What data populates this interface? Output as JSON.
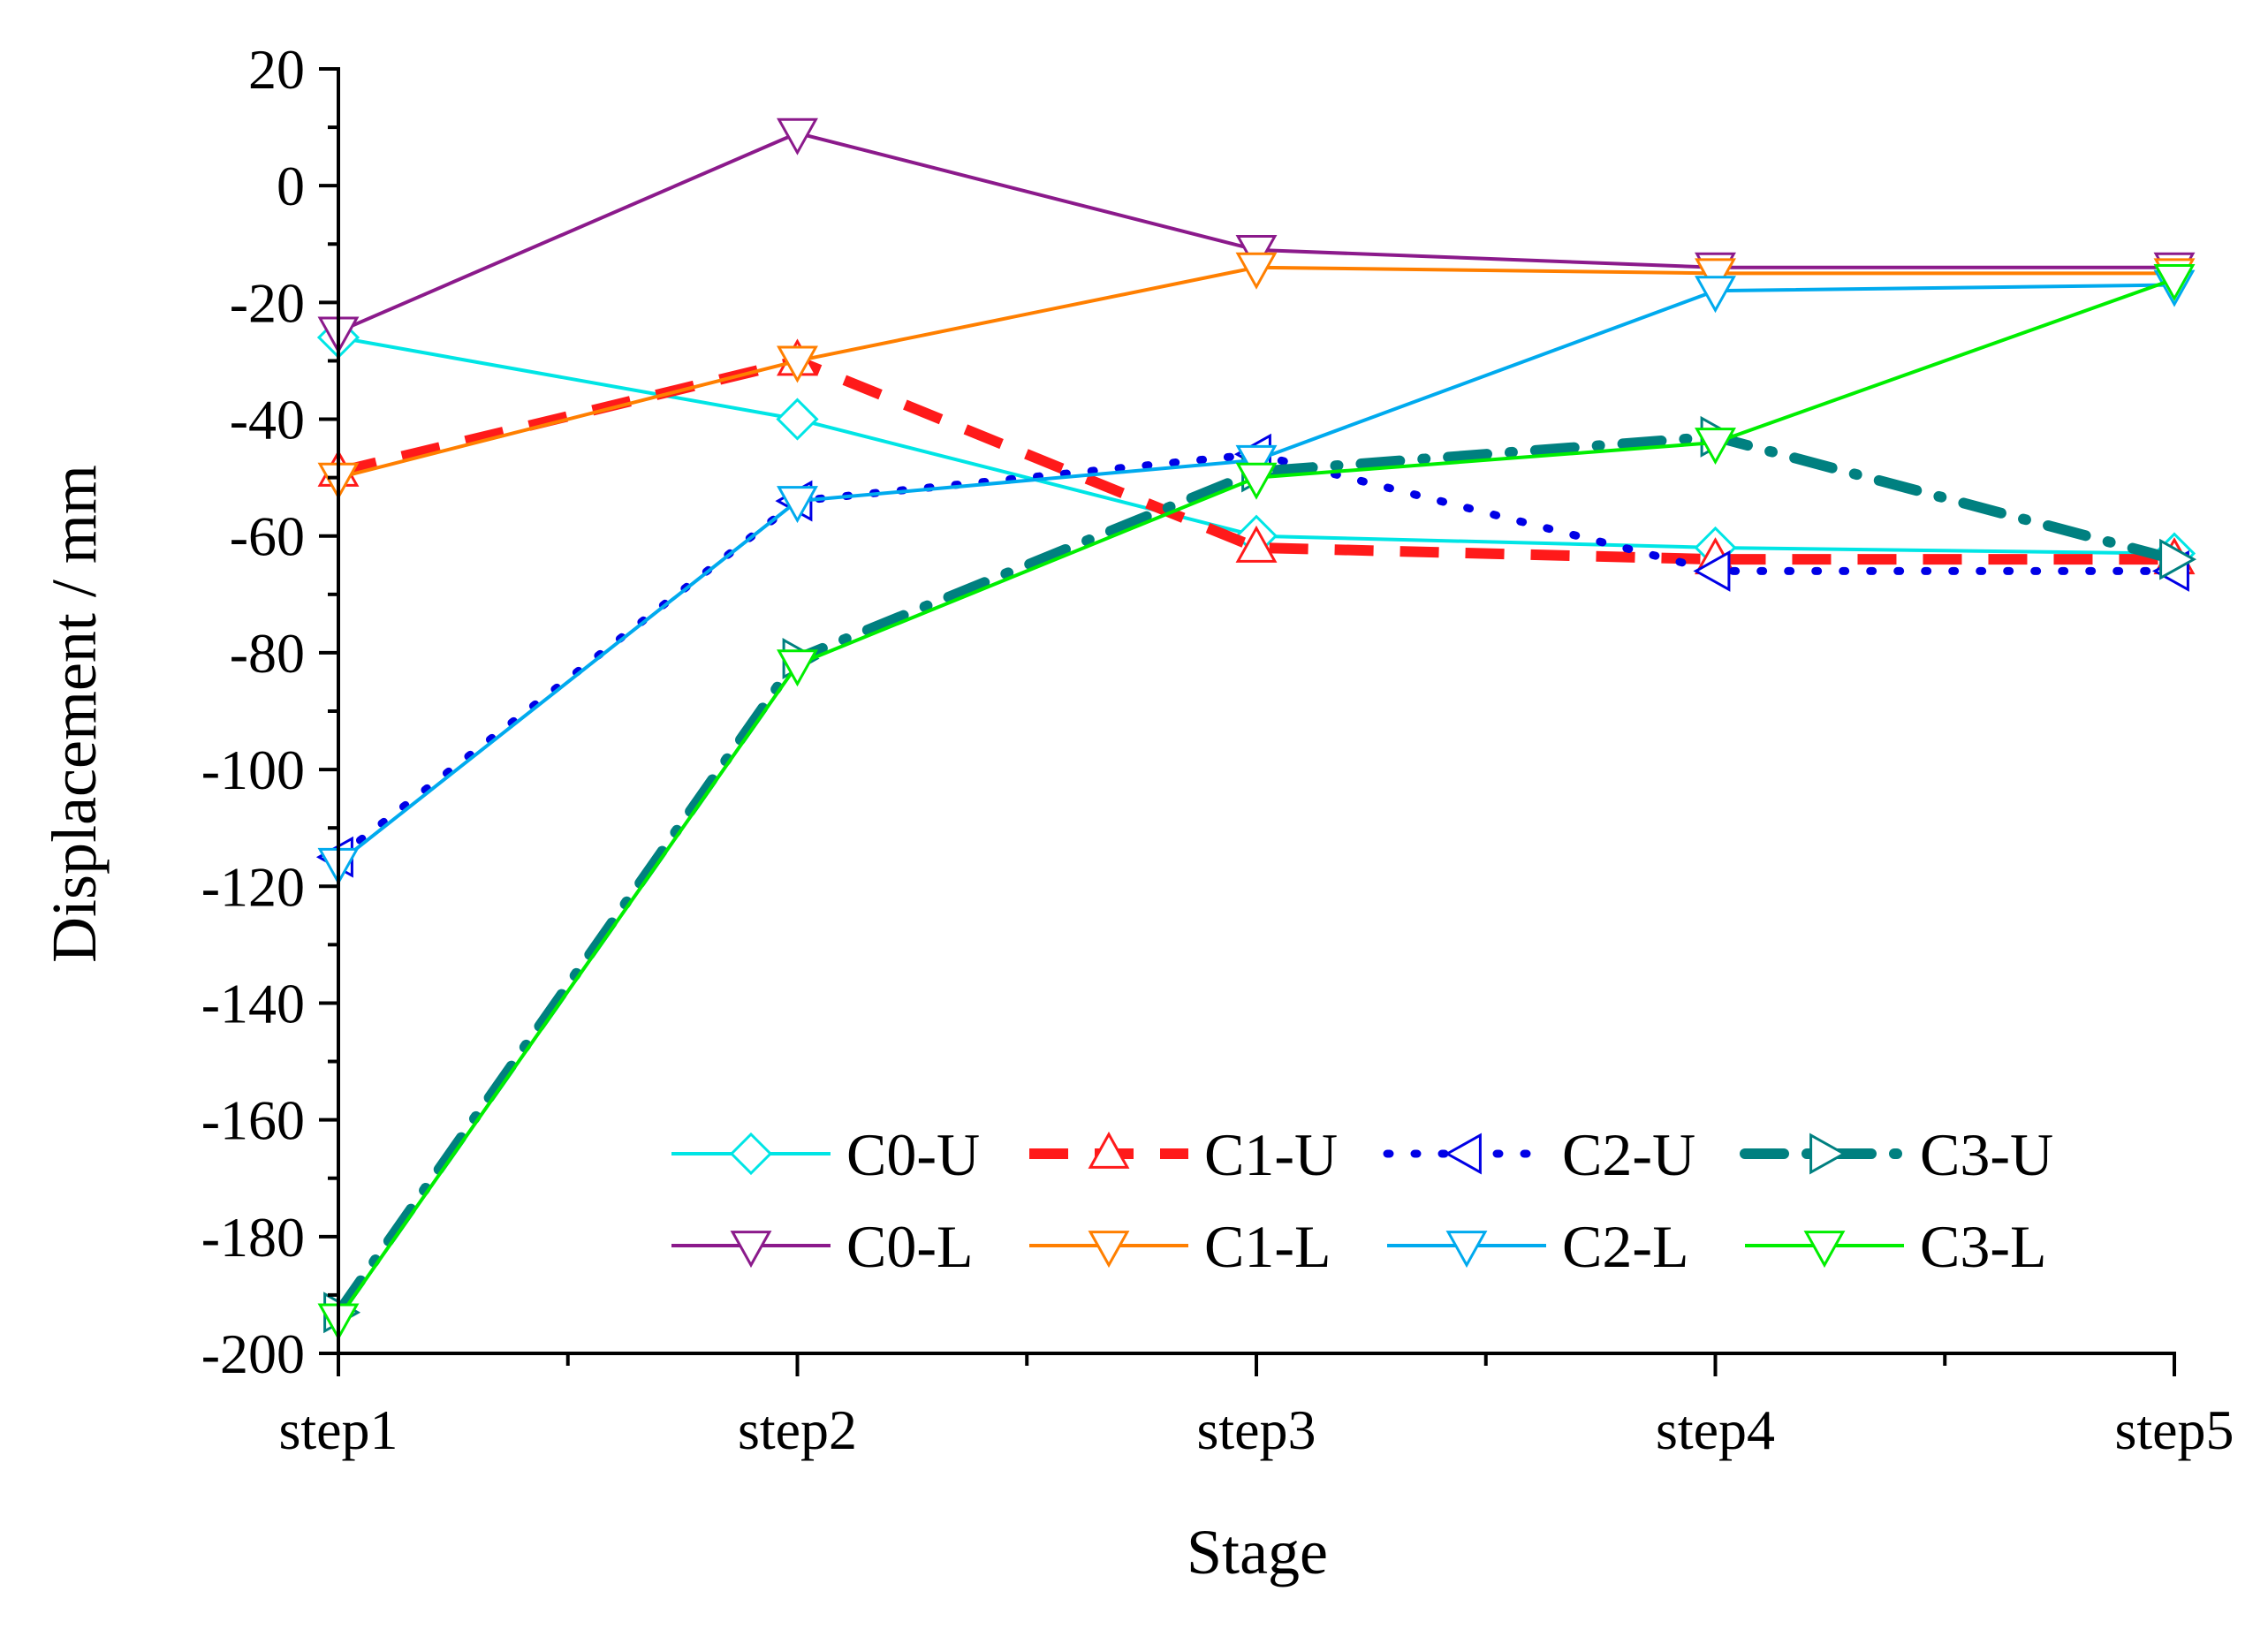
{
  "chart_data": {
    "type": "line",
    "title": "",
    "xlabel": "Stage",
    "ylabel": "Displacement / mm",
    "categories": [
      "step1",
      "step2",
      "step3",
      "step4",
      "step5"
    ],
    "ylim": [
      -200,
      20
    ],
    "yticks": [
      20,
      0,
      -20,
      -40,
      -60,
      -80,
      -100,
      -120,
      -140,
      -160,
      -180,
      -200
    ],
    "ytick_labels": [
      "20",
      "0",
      "-20",
      "-40",
      "-60",
      "-80",
      "-100",
      "-120",
      "-140",
      "-160",
      "-180",
      "-200"
    ],
    "grid": false,
    "legend_position": "bottom-right",
    "series": [
      {
        "name": "C0-U",
        "values": [
          -26,
          -40,
          -60,
          -62,
          -63
        ],
        "color": "#00e5e5",
        "dash": "solid",
        "marker": "diamond",
        "weight": "thin"
      },
      {
        "name": "C1-U",
        "values": [
          -49,
          -30,
          -62,
          -64,
          -64
        ],
        "color": "#ff1a1a",
        "dash": "dash",
        "marker": "triangle-up",
        "weight": "thick"
      },
      {
        "name": "C2-U",
        "values": [
          -115,
          -54,
          -46,
          -66,
          -66
        ],
        "color": "#0000e6",
        "dash": "dot",
        "marker": "triangle-left",
        "weight": "medium"
      },
      {
        "name": "C3-U",
        "values": [
          -193,
          -81,
          -49,
          -43,
          -64
        ],
        "color": "#008080",
        "dash": "dashdot",
        "marker": "triangle-right",
        "weight": "thick"
      },
      {
        "name": "C0-L",
        "values": [
          -25,
          9,
          -11,
          -14,
          -14
        ],
        "color": "#8b1a8b",
        "dash": "solid",
        "marker": "triangle-down",
        "weight": "thin"
      },
      {
        "name": "C1-L",
        "values": [
          -50,
          -30,
          -14,
          -15,
          -15
        ],
        "color": "#ff7f00",
        "dash": "solid",
        "marker": "triangle-down",
        "weight": "thin"
      },
      {
        "name": "C2-L",
        "values": [
          -116,
          -54,
          -47,
          -18,
          -17
        ],
        "color": "#00aaee",
        "dash": "solid",
        "marker": "triangle-down",
        "weight": "thin"
      },
      {
        "name": "C3-L",
        "values": [
          -194,
          -82,
          -50,
          -44,
          -16
        ],
        "color": "#00ee00",
        "dash": "solid",
        "marker": "triangle-down",
        "weight": "thin"
      }
    ]
  }
}
